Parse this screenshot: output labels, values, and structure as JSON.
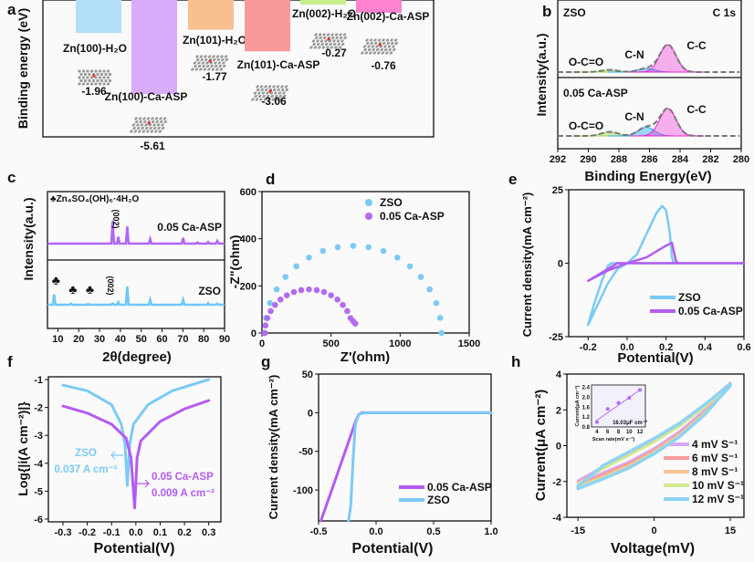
{
  "chart_data": [
    {
      "panel": "a",
      "type": "bar",
      "ylabel": "Binding energy (eV)",
      "categories": [
        "Zn(100)-H₂O",
        "Zn(100)-Ca-ASP",
        "Zn(101)-H₂O",
        "Zn(101)-Ca-ASP",
        "Zn(002)-H₂O",
        "Zn(002)-Ca-ASP"
      ],
      "values": [
        -1.96,
        -5.61,
        -1.77,
        -3.06,
        -0.27,
        -0.76
      ],
      "value_labels": [
        "-1.96",
        "-5.61",
        "-1.77",
        "-3.06",
        "-0.27",
        "-0.76"
      ],
      "colors": [
        "#b3e0f8",
        "#d9acf9",
        "#f8c090",
        "#f99a9a",
        "#c8ee8c",
        "#ff82cf"
      ]
    },
    {
      "panel": "b",
      "type": "area",
      "xlabel": "Binding Energy(eV)",
      "ylabel": "Intensity(a.u.)",
      "title_right": "C 1s",
      "xlim": [
        292,
        280
      ],
      "xticks": [
        "292",
        "290",
        "288",
        "286",
        "284",
        "282",
        "280"
      ],
      "samples": [
        {
          "name": "ZSO",
          "components": [
            {
              "label": "O-C=O",
              "center": 288.6,
              "height": 0.08,
              "color": "#9bd64a"
            },
            {
              "label": "C-N",
              "center": 286.2,
              "height": 0.13,
              "color": "#2aa8f0"
            },
            {
              "label": "C-C",
              "center": 284.8,
              "height": 1.0,
              "color": "#f020d0"
            }
          ]
        },
        {
          "name": "0.05 Ca-ASP",
          "components": [
            {
              "label": "O-C=O",
              "center": 288.6,
              "height": 0.15,
              "color": "#9bd64a"
            },
            {
              "label": "C-N",
              "center": 286.2,
              "height": 0.32,
              "color": "#2aa8f0"
            },
            {
              "label": "C-C",
              "center": 284.8,
              "height": 1.0,
              "color": "#f020d0"
            }
          ]
        }
      ]
    },
    {
      "panel": "c",
      "type": "line",
      "xlabel": "2θ(degree)",
      "ylabel": "Intensity(a.u.)",
      "xlim": [
        5,
        90
      ],
      "xticks": [
        "10",
        "20",
        "30",
        "40",
        "50",
        "60",
        "70",
        "80",
        "90"
      ],
      "legend": "♣Zn₄SO₄(OH)₆·4H₂O",
      "peak_label": "(002)",
      "series": [
        {
          "name": "0.05 Ca-ASP",
          "color": "#b266f5",
          "peaks": [
            [
              36.3,
              1.0
            ],
            [
              39.0,
              0.3
            ],
            [
              43.3,
              0.75
            ],
            [
              54.3,
              0.2
            ],
            [
              70.1,
              0.25
            ],
            [
              77.0,
              0.05
            ],
            [
              82.1,
              0.07
            ],
            [
              86.5,
              0.12
            ]
          ]
        },
        {
          "name": "ZSO",
          "color": "#6ec8f7",
          "peaks": [
            [
              8.2,
              0.45
            ],
            [
              16.3,
              0.05
            ],
            [
              24.5,
              0.03
            ],
            [
              36.2,
              0.05
            ],
            [
              39.0,
              0.12
            ],
            [
              43.3,
              0.8
            ],
            [
              54.3,
              0.22
            ],
            [
              70.1,
              0.22
            ],
            [
              82.1,
              0.07
            ],
            [
              86.5,
              0.05
            ]
          ],
          "markers": [
            8.2,
            16.3,
            24.5
          ]
        }
      ]
    },
    {
      "panel": "d",
      "type": "scatter",
      "xlabel": "Z'(ohm)",
      "ylabel": "-Z\"(ohm)",
      "xlim": [
        0,
        1500
      ],
      "ylim": [
        0,
        600
      ],
      "xticks": [
        "0",
        "500",
        "1000",
        "1500"
      ],
      "yticks": [
        "0",
        "200",
        "400",
        "600"
      ],
      "series": [
        {
          "name": "ZSO",
          "color": "#7cc9f5",
          "points": [
            [
              20,
              0
            ],
            [
              30,
              64
            ],
            [
              58,
              127
            ],
            [
              106,
              185
            ],
            [
              170,
              238
            ],
            [
              249,
              283
            ],
            [
              340,
              320
            ],
            [
              441,
              348
            ],
            [
              549,
              364
            ],
            [
              660,
              370
            ],
            [
              771,
              364
            ],
            [
              879,
              348
            ],
            [
              980,
              320
            ],
            [
              1071,
              283
            ],
            [
              1150,
              238
            ],
            [
              1214,
              185
            ],
            [
              1262,
              127
            ],
            [
              1290,
              64
            ],
            [
              1300,
              0
            ]
          ]
        },
        {
          "name": "0.05 Ca-ASP",
          "color": "#b26cf0",
          "points": [
            [
              20,
              0
            ],
            [
              25,
              32
            ],
            [
              39,
              63
            ],
            [
              63,
              93
            ],
            [
              95,
              119
            ],
            [
              134,
              142
            ],
            [
              180,
              160
            ],
            [
              231,
              174
            ],
            [
              284,
              182
            ],
            [
              340,
              185
            ],
            [
              396,
              182
            ],
            [
              449,
              174
            ],
            [
              500,
              160
            ],
            [
              546,
              142
            ],
            [
              585,
              119
            ],
            [
              617,
              93
            ],
            [
              641,
              63
            ],
            [
              660,
              50
            ],
            [
              675,
              40
            ]
          ]
        }
      ]
    },
    {
      "panel": "e",
      "type": "line",
      "xlabel": "Potential(V)",
      "ylabel": "Current density(mA cm⁻²)",
      "xlim": [
        -0.3,
        0.6
      ],
      "ylim": [
        -25,
        25
      ],
      "xticks": [
        "-0.2",
        "0.0",
        "0.2",
        "0.4",
        "0.6"
      ],
      "yticks": [
        "-25",
        "0",
        "25"
      ],
      "series": [
        {
          "name": "ZSO",
          "color": "#7ccaf5",
          "points": [
            [
              -0.2,
              -21
            ],
            [
              -0.17,
              -14
            ],
            [
              -0.13,
              -6
            ],
            [
              -0.1,
              -1
            ],
            [
              -0.08,
              0
            ],
            [
              0,
              0
            ],
            [
              0.05,
              3
            ],
            [
              0.1,
              10
            ],
            [
              0.15,
              17
            ],
            [
              0.18,
              19.5
            ],
            [
              0.2,
              18
            ],
            [
              0.22,
              10
            ],
            [
              0.23,
              2
            ],
            [
              0.24,
              0
            ],
            [
              0.6,
              0
            ],
            [
              0,
              0
            ],
            [
              -0.05,
              -2
            ],
            [
              -0.1,
              -7
            ],
            [
              -0.15,
              -14
            ],
            [
              -0.2,
              -21
            ]
          ]
        },
        {
          "name": "0.05 Ca-ASP",
          "color": "#b35cf2",
          "points": [
            [
              -0.2,
              -6
            ],
            [
              -0.1,
              -2
            ],
            [
              -0.05,
              0
            ],
            [
              0,
              0
            ],
            [
              0.1,
              2
            ],
            [
              0.2,
              6
            ],
            [
              0.23,
              7
            ],
            [
              0.25,
              1
            ],
            [
              0.26,
              0
            ],
            [
              0.6,
              0
            ],
            [
              0,
              0
            ],
            [
              -0.1,
              -2.5
            ],
            [
              -0.2,
              -6
            ]
          ]
        }
      ]
    },
    {
      "panel": "f",
      "type": "line",
      "xlabel": "Potential(V)",
      "ylabel": "Log{|i(A cm⁻²)|}",
      "xlim": [
        -0.36,
        0.35
      ],
      "ylim": [
        -6.1,
        -0.9
      ],
      "xticks": [
        "-0.3",
        "-0.2",
        "-0.1",
        "0.0",
        "0.1",
        "0.2",
        "0.3"
      ],
      "yticks": [
        "-6",
        "-5",
        "-4",
        "-3",
        "-2",
        "-1"
      ],
      "series": [
        {
          "name": "ZSO",
          "color": "#7ccaf5",
          "annotation": "0.037 A cm⁻²",
          "points": [
            [
              -0.3,
              -1.2
            ],
            [
              -0.2,
              -1.4
            ],
            [
              -0.1,
              -1.9
            ],
            [
              -0.06,
              -2.6
            ],
            [
              -0.045,
              -3.3
            ],
            [
              -0.035,
              -4.8
            ],
            [
              -0.025,
              -3.3
            ],
            [
              -0.01,
              -2.6
            ],
            [
              0.05,
              -1.9
            ],
            [
              0.15,
              -1.4
            ],
            [
              0.3,
              -1.0
            ]
          ]
        },
        {
          "name": "0.05 Ca-ASP",
          "color": "#b35cf2",
          "annotation": "0.009 A cm⁻²",
          "points": [
            [
              -0.3,
              -1.95
            ],
            [
              -0.2,
              -2.2
            ],
            [
              -0.1,
              -2.6
            ],
            [
              -0.04,
              -3.1
            ],
            [
              -0.02,
              -3.8
            ],
            [
              -0.005,
              -5.6
            ],
            [
              0.005,
              -3.8
            ],
            [
              0.02,
              -3.2
            ],
            [
              0.1,
              -2.5
            ],
            [
              0.2,
              -2.05
            ],
            [
              0.3,
              -1.75
            ]
          ]
        }
      ]
    },
    {
      "panel": "g",
      "type": "line",
      "xlabel": "Potential(V)",
      "ylabel": "Current density(mA cm⁻²)",
      "xlim": [
        -0.5,
        1.0
      ],
      "ylim": [
        -140,
        50
      ],
      "xticks": [
        "-0.5",
        "0.0",
        "0.5",
        "1.0"
      ],
      "yticks": [
        "-100",
        "-50",
        "0",
        "50"
      ],
      "series": [
        {
          "name": "0.05 Ca-ASP",
          "color": "#b35cf2",
          "points": [
            [
              -0.48,
              -140
            ],
            [
              -0.35,
              -85
            ],
            [
              -0.25,
              -42
            ],
            [
              -0.18,
              -12
            ],
            [
              -0.15,
              -2
            ],
            [
              -0.12,
              0
            ],
            [
              1.0,
              0
            ]
          ]
        },
        {
          "name": "ZSO",
          "color": "#7ccaf5",
          "points": [
            [
              -0.24,
              -140
            ],
            [
              -0.22,
              -120
            ],
            [
              -0.2,
              -60
            ],
            [
              -0.18,
              -15
            ],
            [
              -0.15,
              -2
            ],
            [
              -0.1,
              0
            ],
            [
              1.0,
              0
            ]
          ]
        }
      ]
    },
    {
      "panel": "h",
      "type": "line",
      "xlabel": "Voltage(mV)",
      "ylabel": "Current(μA cm⁻²)",
      "xlim": [
        -17.2,
        17.7
      ],
      "ylim": [
        -4,
        4
      ],
      "xticks": [
        "-15",
        "0",
        "15"
      ],
      "yticks": [
        "-4",
        "-2",
        "0",
        "2",
        "4"
      ],
      "x": [
        -15,
        -10,
        -5,
        0,
        5,
        10,
        15
      ],
      "series": [
        {
          "name": "4 mV S⁻¹",
          "color": "#d8a8f8",
          "upper": [
            -1.95,
            -1.15,
            -0.45,
            0.3,
            1.2,
            2.3,
            3.5
          ],
          "lower": [
            -2.1,
            -1.5,
            -0.9,
            -0.15,
            0.8,
            2.0,
            3.5
          ]
        },
        {
          "name": "6 mV S⁻¹",
          "color": "#f99b9b",
          "upper": [
            -2.05,
            -1.2,
            -0.5,
            0.25,
            1.15,
            2.25,
            3.5
          ],
          "lower": [
            -2.2,
            -1.6,
            -1.0,
            -0.25,
            0.7,
            1.9,
            3.45
          ]
        },
        {
          "name": "8 mV S⁻¹",
          "color": "#f8c290",
          "upper": [
            -2.1,
            -1.25,
            -0.52,
            0.22,
            1.1,
            2.2,
            3.45
          ],
          "lower": [
            -2.25,
            -1.7,
            -1.1,
            -0.32,
            0.62,
            1.85,
            3.4
          ]
        },
        {
          "name": "10 mV S⁻¹",
          "color": "#d3ea92",
          "upper": [
            -2.15,
            -1.28,
            -0.55,
            0.2,
            1.08,
            2.15,
            3.4
          ],
          "lower": [
            -2.3,
            -1.8,
            -1.2,
            -0.4,
            0.55,
            1.8,
            3.35
          ]
        },
        {
          "name": "12 mV S⁻¹",
          "color": "#8fd3f4",
          "upper": [
            -2.25,
            -1.1,
            -0.35,
            0.4,
            1.25,
            2.3,
            3.45
          ],
          "lower": [
            -2.4,
            -1.85,
            -1.25,
            -0.45,
            0.5,
            1.75,
            3.35
          ]
        }
      ],
      "inset": {
        "xlabel": "Scan rate(mV s⁻¹)",
        "ylabel": "Current(μA cm⁻²)",
        "xlim": [
          3,
          13
        ],
        "ylim": [
          0.8,
          2.5
        ],
        "xticks": [
          "4",
          "6",
          "8",
          "10",
          "12"
        ],
        "yticks": [
          "0.8",
          "1.2",
          "1.6",
          "2.0",
          "2.4"
        ],
        "x": [
          4,
          6,
          8,
          10,
          12
        ],
        "y": [
          1.0,
          1.53,
          1.78,
          1.98,
          2.3
        ],
        "fit_label": "16.03μF cm⁻²",
        "color": "#b06ef0"
      }
    }
  ],
  "panel_labels": [
    "a",
    "b",
    "c",
    "d",
    "e",
    "f",
    "g",
    "h"
  ]
}
